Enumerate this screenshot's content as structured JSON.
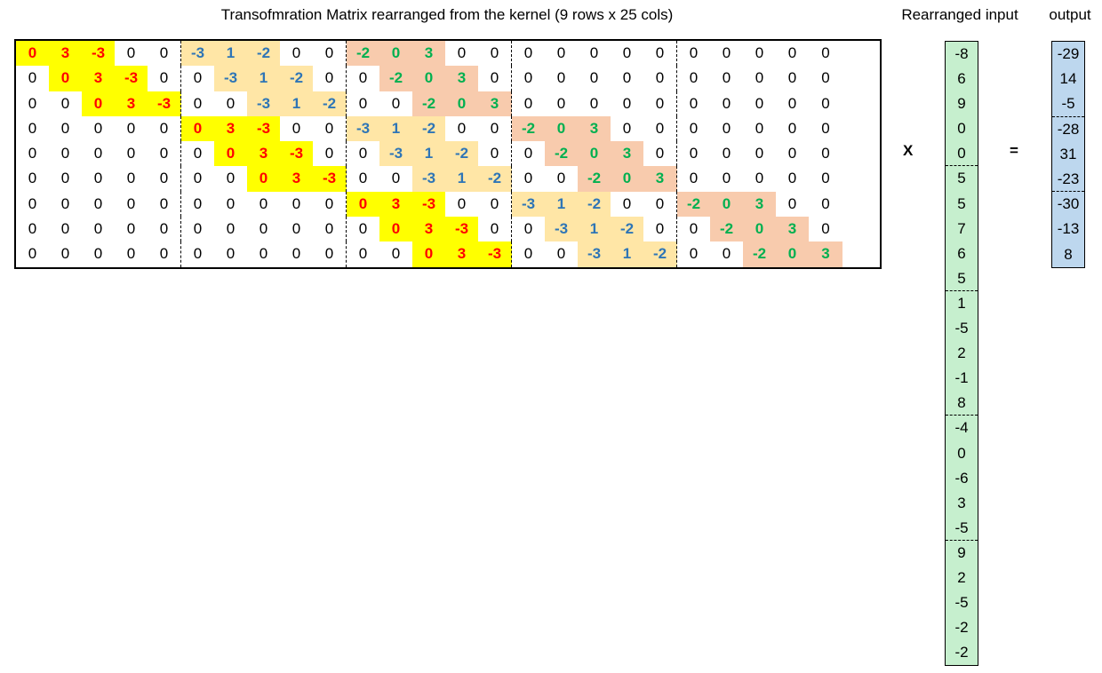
{
  "titles": {
    "matrix": "Transofmration Matrix rearranged from the kernel (9 rows x 25 cols)",
    "input": "Rearranged input",
    "output": "output"
  },
  "operators": {
    "times": "X",
    "equals": "="
  },
  "colors": {
    "band1_bg": "#ffff00",
    "band2_bg": "#ffe6a6",
    "band3_bg": "#f8cbad",
    "band1_text": "#ff0000",
    "band2_text": "#2e75b6",
    "band3_text": "#00b050",
    "input_bg": "#c6efce",
    "output_bg": "#bdd7ee"
  },
  "matrix": [
    [
      "0",
      "3",
      "-3",
      "0",
      "0",
      "-3",
      "1",
      "-2",
      "0",
      "0",
      "-2",
      "0",
      "3",
      "0",
      "0",
      "0",
      "0",
      "0",
      "0",
      "0",
      "0",
      "0",
      "0",
      "0",
      "0"
    ],
    [
      "0",
      "0",
      "3",
      "-3",
      "0",
      "0",
      "-3",
      "1",
      "-2",
      "0",
      "0",
      "-2",
      "0",
      "3",
      "0",
      "0",
      "0",
      "0",
      "0",
      "0",
      "0",
      "0",
      "0",
      "0",
      "0"
    ],
    [
      "0",
      "0",
      "0",
      "3",
      "-3",
      "0",
      "0",
      "-3",
      "1",
      "-2",
      "0",
      "0",
      "-2",
      "0",
      "3",
      "0",
      "0",
      "0",
      "0",
      "0",
      "0",
      "0",
      "0",
      "0",
      "0"
    ],
    [
      "0",
      "0",
      "0",
      "0",
      "0",
      "0",
      "3",
      "-3",
      "0",
      "0",
      "-3",
      "1",
      "-2",
      "0",
      "0",
      "-2",
      "0",
      "3",
      "0",
      "0",
      "0",
      "0",
      "0",
      "0",
      "0"
    ],
    [
      "0",
      "0",
      "0",
      "0",
      "0",
      "0",
      "0",
      "3",
      "-3",
      "0",
      "0",
      "-3",
      "1",
      "-2",
      "0",
      "0",
      "-2",
      "0",
      "3",
      "0",
      "0",
      "0",
      "0",
      "0",
      "0"
    ],
    [
      "0",
      "0",
      "0",
      "0",
      "0",
      "0",
      "0",
      "0",
      "3",
      "-3",
      "0",
      "0",
      "-3",
      "1",
      "-2",
      "0",
      "0",
      "-2",
      "0",
      "3",
      "0",
      "0",
      "0",
      "0",
      "0"
    ],
    [
      "0",
      "0",
      "0",
      "0",
      "0",
      "0",
      "0",
      "0",
      "0",
      "0",
      "0",
      "3",
      "-3",
      "0",
      "0",
      "-3",
      "1",
      "-2",
      "0",
      "0",
      "-2",
      "0",
      "3",
      "0",
      "0"
    ],
    [
      "0",
      "0",
      "0",
      "0",
      "0",
      "0",
      "0",
      "0",
      "0",
      "0",
      "0",
      "0",
      "3",
      "-3",
      "0",
      "0",
      "-3",
      "1",
      "-2",
      "0",
      "0",
      "-2",
      "0",
      "3",
      "0"
    ],
    [
      "0",
      "0",
      "0",
      "0",
      "0",
      "0",
      "0",
      "0",
      "0",
      "0",
      "0",
      "0",
      "0",
      "3",
      "-3",
      "0",
      "0",
      "-3",
      "1",
      "-2",
      "0",
      "0",
      "-2",
      "0",
      "3"
    ]
  ],
  "input": [
    "-8",
    "6",
    "9",
    "0",
    "0",
    "5",
    "5",
    "7",
    "6",
    "5",
    "1",
    "-5",
    "2",
    "-1",
    "8",
    "-4",
    "0",
    "-6",
    "3",
    "-5",
    "9",
    "2",
    "-5",
    "-2",
    "-2"
  ],
  "output": [
    "-29",
    "14",
    "-5",
    "-28",
    "31",
    "-23",
    "-30",
    "-13",
    "8"
  ]
}
